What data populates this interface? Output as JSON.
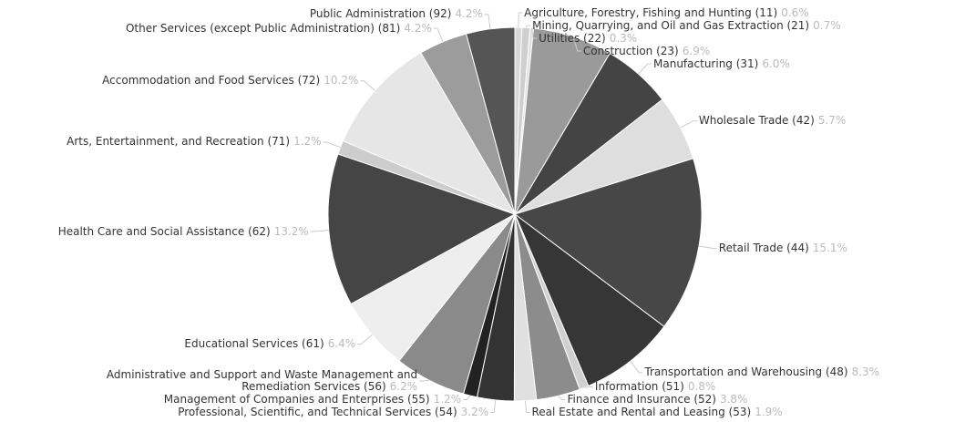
{
  "chart_data": {
    "type": "pie",
    "categories": [
      "Agriculture, Forestry, Fishing and Hunting (11)",
      "Mining, Quarrying, and Oil and Gas Extraction (21)",
      "Utilities (22)",
      "Construction (23)",
      "Manufacturing (31)",
      "Wholesale Trade (42)",
      "Retail Trade (44)",
      "Transportation and Warehousing (48)",
      "Information (51)",
      "Finance and Insurance (52)",
      "Real Estate and Rental and Leasing (53)",
      "Professional, Scientific, and Technical Services (54)",
      "Management of Companies and Enterprises (55)",
      "Administrative and Support and Waste Management and Remediation Services (56)",
      "Educational Services (61)",
      "Health Care and Social Assistance (62)",
      "Arts, Entertainment, and Recreation (71)",
      "Accommodation and Food Services (72)",
      "Other Services (except Public Administration) (81)",
      "Public Administration (92)"
    ],
    "values": [
      0.6,
      0.7,
      0.3,
      6.9,
      6.0,
      5.7,
      15.1,
      8.3,
      0.8,
      3.8,
      1.9,
      3.2,
      1.2,
      6.2,
      6.4,
      13.2,
      1.2,
      10.2,
      4.2,
      4.2
    ],
    "value_labels": [
      "0.6%",
      "0.7%",
      "0.3%",
      "6.9%",
      "6.0%",
      "5.7%",
      "15.1%",
      "8.3%",
      "0.8%",
      "3.8%",
      "1.9%",
      "3.2%",
      "1.2%",
      "6.2%",
      "6.4%",
      "13.2%",
      "1.2%",
      "10.2%",
      "4.2%",
      "4.2%"
    ],
    "colors": [
      "#d8d8d8",
      "#cfcfcf",
      "#e2e2e2",
      "#9a9a9a",
      "#444444",
      "#dedede",
      "#474747",
      "#363636",
      "#d0d0d0",
      "#8c8c8c",
      "#e0e0e0",
      "#333333",
      "#222222",
      "#8a8a8a",
      "#eeeeee",
      "#454545",
      "#cccccc",
      "#e6e6e6",
      "#9c9c9c",
      "#555555"
    ]
  }
}
